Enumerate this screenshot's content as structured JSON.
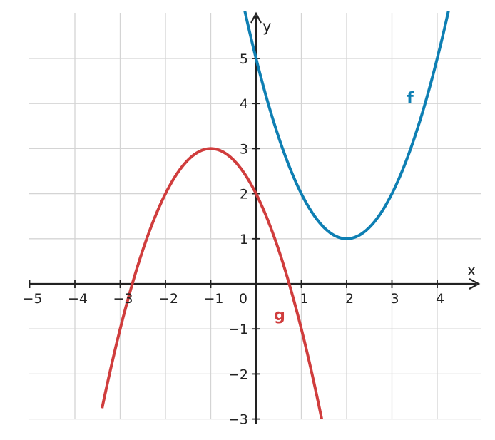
{
  "chart_data": {
    "type": "line",
    "xlabel": "x",
    "ylabel": "y",
    "xlim": [
      -5,
      5
    ],
    "ylim": [
      -3,
      6
    ],
    "grid": true,
    "x_ticks": [
      -5,
      -4,
      -3,
      -2,
      -1,
      1,
      2,
      3,
      4
    ],
    "y_ticks": [
      -3,
      -2,
      -1,
      1,
      2,
      3,
      4,
      5
    ],
    "x_tick_labels": [
      "−5",
      "−4",
      "−3",
      "−2",
      "−1",
      "1",
      "2",
      "3",
      "4"
    ],
    "y_tick_labels": [
      "−3",
      "−2",
      "−1",
      "1",
      "2",
      "3",
      "4",
      "5"
    ],
    "origin_label": "0",
    "series": [
      {
        "name": "f",
        "color": "#0e7fb3",
        "x": [
          0,
          0.5,
          1,
          1.5,
          2,
          2.5,
          3,
          3.5,
          4
        ],
        "y": [
          5,
          3.25,
          2,
          1.25,
          1,
          1.25,
          2,
          3.25,
          5
        ]
      },
      {
        "name": "g",
        "color": "#d03d3d",
        "x": [
          -3,
          -2.5,
          -2,
          -1.5,
          -1,
          -0.5,
          0,
          0.5,
          1
        ],
        "y": [
          -1,
          0.75,
          2,
          2.75,
          3,
          2.75,
          2,
          0.75,
          -1
        ]
      }
    ]
  }
}
